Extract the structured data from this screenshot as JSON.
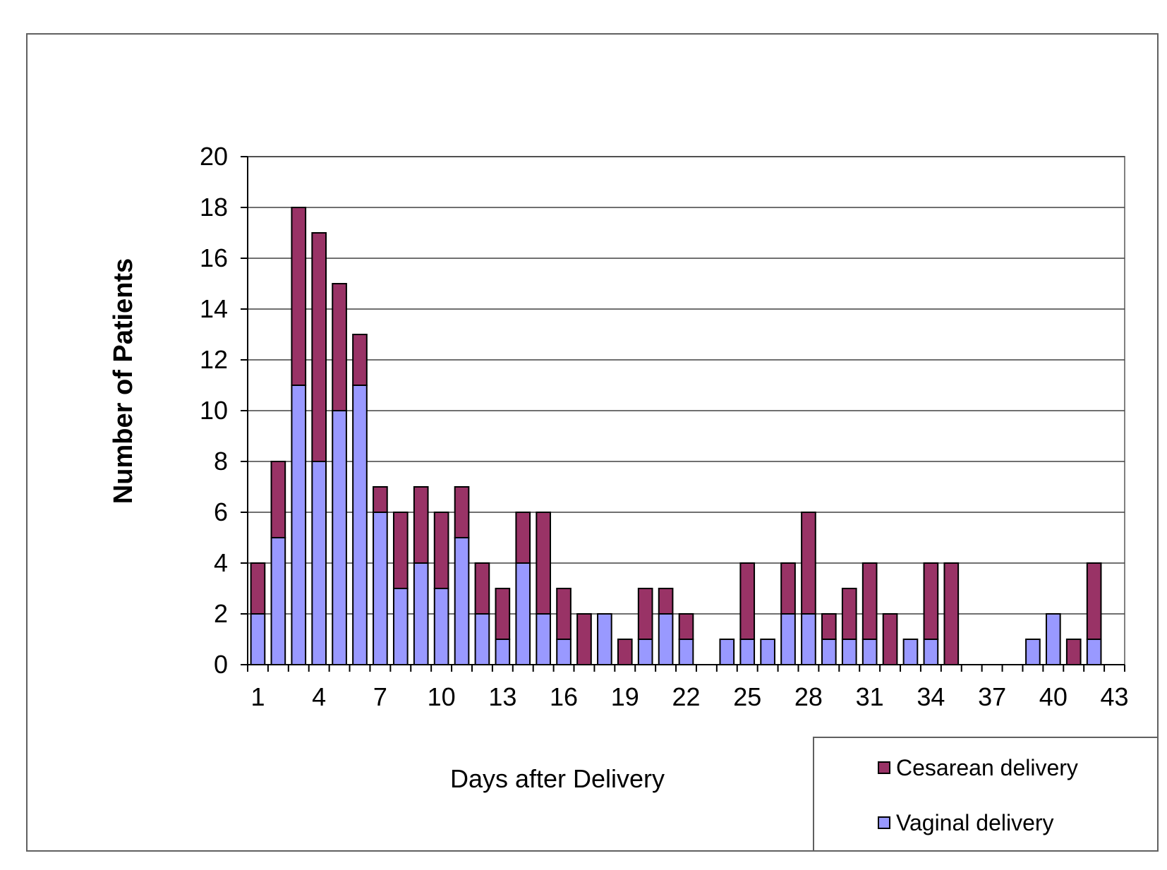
{
  "chart_data": {
    "type": "bar",
    "stacked": true,
    "title": "",
    "xlabel": "Days after Delivery",
    "ylabel": "Number of Patients",
    "ylim": [
      0,
      20
    ],
    "yticks": [
      0,
      2,
      4,
      6,
      8,
      10,
      12,
      14,
      16,
      18,
      20
    ],
    "xtick_labels": [
      "1",
      "4",
      "7",
      "10",
      "13",
      "16",
      "19",
      "22",
      "25",
      "28",
      "31",
      "34",
      "37",
      "40",
      "43"
    ],
    "grid": true,
    "legend_position": "bottom-right",
    "categories": [
      1,
      2,
      3,
      4,
      5,
      6,
      7,
      8,
      9,
      10,
      11,
      12,
      13,
      14,
      15,
      16,
      17,
      18,
      19,
      20,
      21,
      22,
      23,
      24,
      25,
      26,
      27,
      28,
      29,
      30,
      31,
      32,
      33,
      34,
      35,
      36,
      37,
      38,
      39,
      40,
      41,
      42,
      43
    ],
    "series": [
      {
        "name": "Vaginal delivery",
        "color": "#9999ff",
        "values": [
          2,
          5,
          11,
          8,
          10,
          11,
          6,
          3,
          4,
          3,
          5,
          2,
          1,
          4,
          2,
          1,
          0,
          2,
          0,
          1,
          2,
          1,
          0,
          1,
          1,
          1,
          2,
          2,
          1,
          1,
          1,
          0,
          1,
          1,
          0,
          0,
          0,
          0,
          1,
          2,
          0,
          1,
          0
        ]
      },
      {
        "name": "Cesarean delivery",
        "color": "#993366",
        "values": [
          2,
          3,
          7,
          9,
          5,
          2,
          1,
          3,
          3,
          3,
          2,
          2,
          2,
          2,
          4,
          2,
          2,
          0,
          1,
          2,
          1,
          1,
          0,
          0,
          3,
          0,
          2,
          4,
          1,
          2,
          3,
          2,
          0,
          3,
          4,
          0,
          0,
          0,
          0,
          0,
          1,
          3,
          0
        ]
      }
    ]
  }
}
